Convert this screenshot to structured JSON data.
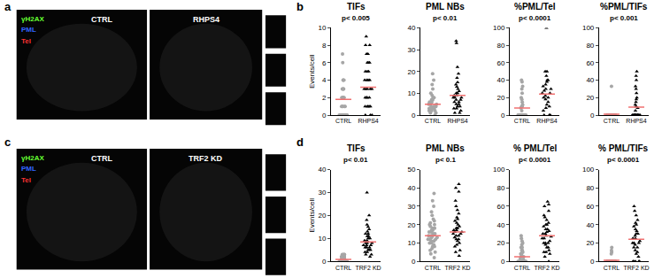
{
  "panel_labels": [
    "a",
    "b",
    "c",
    "d"
  ],
  "images": [
    {
      "labels": [
        "CTRL",
        "RHPS4"
      ],
      "channels": [
        {
          "text": "γH2AX",
          "color": "#66ff33"
        },
        {
          "text": "PML",
          "color": "#3366ff"
        },
        {
          "text": "Tel",
          "color": "#ff3333"
        }
      ]
    },
    {
      "labels": [
        "CTRL",
        "TRF2 KD"
      ],
      "channels": [
        {
          "text": "γH2AX",
          "color": "#66ff33"
        },
        {
          "text": "PML",
          "color": "#3366ff"
        },
        {
          "text": "Tel",
          "color": "#ff3333"
        }
      ]
    }
  ],
  "chart_data": [
    {
      "type": "scatter",
      "title": "TIFs",
      "subtitle": "p< 0.005",
      "y_label": "Events/cell",
      "ylim": [
        0,
        10
      ],
      "yticks": [
        0,
        2,
        4,
        6,
        8,
        10
      ],
      "series": [
        {
          "name": "CTRL",
          "color": "#a6a6a6",
          "marker": "circle",
          "mean": 1.8,
          "values": [
            0,
            0,
            0,
            0,
            0,
            0,
            0,
            0,
            0,
            0,
            0,
            1,
            1,
            1,
            1,
            1,
            2,
            2,
            2,
            2,
            2,
            3,
            3,
            3,
            3,
            4,
            4,
            4,
            6,
            7
          ]
        },
        {
          "name": "RHPS4",
          "color": "#000000",
          "marker": "triangle-up",
          "mean": 3.2,
          "values": [
            0,
            0,
            0,
            1,
            1,
            1,
            1,
            1,
            2,
            2,
            2,
            2,
            3,
            3,
            3,
            3,
            3,
            4,
            4,
            4,
            4,
            5,
            5,
            5,
            6,
            6,
            6,
            7,
            7,
            8,
            8,
            9
          ]
        }
      ]
    },
    {
      "type": "scatter",
      "title": "PML NBs",
      "subtitle": "p< 0.01",
      "ylim": [
        0,
        40
      ],
      "yticks": [
        0,
        10,
        20,
        30,
        40
      ],
      "series": [
        {
          "name": "CTRL",
          "color": "#a6a6a6",
          "marker": "circle",
          "mean": 5,
          "values": [
            0,
            1,
            1,
            2,
            2,
            2,
            3,
            3,
            3,
            3,
            4,
            4,
            4,
            5,
            5,
            5,
            6,
            6,
            7,
            7,
            8,
            8,
            9,
            10,
            12,
            14,
            16,
            19
          ]
        },
        {
          "name": "RHPS4",
          "color": "#000000",
          "marker": "triangle-up",
          "mean": 9,
          "values": [
            1,
            1,
            2,
            3,
            3,
            4,
            4,
            5,
            5,
            6,
            6,
            7,
            7,
            8,
            8,
            8,
            9,
            9,
            10,
            10,
            11,
            12,
            13,
            14,
            15,
            17,
            19,
            22,
            33,
            34
          ]
        }
      ]
    },
    {
      "type": "scatter",
      "title": "%PML/Tel",
      "subtitle": "p< 0.0001",
      "ylim": [
        0,
        100
      ],
      "yticks": [
        0,
        20,
        40,
        60,
        80,
        100
      ],
      "series": [
        {
          "name": "CTRL",
          "color": "#a6a6a6",
          "marker": "circle",
          "mean": 8,
          "values": [
            0,
            0,
            0,
            0,
            0,
            0,
            0,
            0,
            0,
            0,
            0,
            0,
            0,
            0,
            0,
            0,
            5,
            8,
            10,
            10,
            12,
            15,
            18,
            20,
            25,
            30,
            33,
            38,
            40
          ]
        },
        {
          "name": "RHPS4",
          "color": "#000000",
          "marker": "triangle-up",
          "mean": 24,
          "values": [
            0,
            0,
            0,
            5,
            8,
            10,
            12,
            15,
            18,
            20,
            20,
            22,
            25,
            25,
            28,
            30,
            30,
            33,
            35,
            38,
            40,
            40,
            45,
            50,
            50,
            100
          ]
        }
      ]
    },
    {
      "type": "scatter",
      "title": "%PML/TIFs",
      "subtitle": "p< 0.001",
      "ylim": [
        0,
        100
      ],
      "yticks": [
        0,
        20,
        40,
        60,
        80,
        100
      ],
      "series": [
        {
          "name": "CTRL",
          "color": "#a6a6a6",
          "marker": "circle",
          "mean": 1,
          "values": [
            0,
            0,
            0,
            0,
            0,
            0,
            0,
            0,
            0,
            0,
            0,
            0,
            0,
            0,
            0,
            0,
            0,
            0,
            0,
            0,
            0,
            0,
            0,
            0,
            0,
            0,
            0,
            33
          ]
        },
        {
          "name": "RHPS4",
          "color": "#000000",
          "marker": "triangle-up",
          "mean": 9,
          "values": [
            0,
            0,
            0,
            0,
            0,
            0,
            0,
            0,
            0,
            0,
            0,
            0,
            0,
            0,
            5,
            8,
            10,
            12,
            15,
            18,
            20,
            25,
            30,
            33,
            40,
            45,
            50
          ]
        }
      ]
    },
    {
      "type": "scatter",
      "title": "TIFs",
      "subtitle": "p< 0.01",
      "y_label": "Events/cell",
      "ylim": [
        0,
        40
      ],
      "yticks": [
        0,
        10,
        20,
        30,
        40
      ],
      "series": [
        {
          "name": "CTRL",
          "color": "#a6a6a6",
          "marker": "circle",
          "mean": 0.8,
          "values": [
            0,
            0,
            0,
            0,
            0,
            0,
            0,
            0,
            0,
            0,
            0,
            0,
            0,
            0,
            0,
            0,
            0,
            0,
            1,
            1,
            1,
            1,
            1,
            1,
            1,
            1,
            1,
            1,
            2,
            2,
            2,
            2,
            2,
            2,
            2,
            3,
            3,
            3,
            3
          ]
        },
        {
          "name": "TRF2 KD",
          "color": "#000000",
          "marker": "triangle-up",
          "mean": 8.5,
          "values": [
            2,
            3,
            3,
            4,
            4,
            5,
            5,
            5,
            6,
            6,
            6,
            7,
            7,
            7,
            8,
            8,
            8,
            9,
            9,
            10,
            10,
            11,
            11,
            12,
            12,
            13,
            14,
            15,
            16,
            18,
            20,
            30
          ]
        }
      ]
    },
    {
      "type": "scatter",
      "title": "PML NBs",
      "subtitle": "p< 0.1",
      "ylim": [
        0,
        50
      ],
      "yticks": [
        0,
        10,
        20,
        30,
        40,
        50
      ],
      "series": [
        {
          "name": "CTRL",
          "color": "#a6a6a6",
          "marker": "circle",
          "mean": 14,
          "values": [
            2,
            4,
            5,
            6,
            7,
            8,
            8,
            9,
            10,
            10,
            11,
            11,
            12,
            12,
            12,
            13,
            13,
            14,
            14,
            14,
            15,
            15,
            16,
            16,
            17,
            17,
            18,
            18,
            19,
            20,
            20,
            21,
            22,
            23,
            25,
            27,
            30,
            33,
            37
          ]
        },
        {
          "name": "TRF2 KD",
          "color": "#000000",
          "marker": "triangle-up",
          "mean": 16,
          "values": [
            3,
            5,
            6,
            8,
            9,
            10,
            11,
            12,
            12,
            13,
            14,
            14,
            15,
            15,
            16,
            16,
            17,
            17,
            18,
            18,
            19,
            20,
            21,
            22,
            23,
            24,
            26,
            28,
            30,
            33,
            38,
            40,
            42
          ]
        }
      ]
    },
    {
      "type": "scatter",
      "title": "% PML/Tel",
      "subtitle": "p< 0.0001",
      "ylim": [
        0,
        100
      ],
      "yticks": [
        0,
        20,
        40,
        60,
        80,
        100
      ],
      "series": [
        {
          "name": "CTRL",
          "color": "#a6a6a6",
          "marker": "circle",
          "mean": 5,
          "values": [
            0,
            0,
            0,
            0,
            0,
            0,
            0,
            0,
            0,
            0,
            0,
            0,
            2,
            3,
            5,
            5,
            6,
            8,
            8,
            10,
            10,
            12,
            12,
            15,
            15,
            18,
            20,
            22,
            25,
            28
          ]
        },
        {
          "name": "TRF2 KD",
          "color": "#000000",
          "marker": "triangle-up",
          "mean": 28,
          "values": [
            0,
            5,
            8,
            10,
            10,
            12,
            15,
            15,
            18,
            20,
            20,
            20,
            22,
            25,
            25,
            27,
            28,
            30,
            30,
            32,
            33,
            35,
            35,
            38,
            40,
            40,
            42,
            45,
            48,
            50,
            55,
            60,
            62,
            65
          ]
        }
      ]
    },
    {
      "type": "scatter",
      "title": "% PML/TIFs",
      "subtitle": "p< 0.0001",
      "ylim": [
        0,
        100
      ],
      "yticks": [
        0,
        20,
        40,
        60,
        80,
        100
      ],
      "series": [
        {
          "name": "CTRL",
          "color": "#a6a6a6",
          "marker": "circle",
          "mean": 1,
          "values": [
            0,
            0,
            0,
            0,
            0,
            0,
            0,
            0,
            0,
            0,
            0,
            0,
            0,
            0,
            0,
            0,
            0,
            0,
            0,
            0,
            0,
            0,
            0,
            0,
            0,
            0,
            0,
            0,
            0,
            0,
            0,
            0,
            0,
            0,
            0,
            8,
            10,
            12,
            15
          ]
        },
        {
          "name": "TRF2 KD",
          "color": "#000000",
          "marker": "triangle-up",
          "mean": 24,
          "values": [
            0,
            0,
            0,
            0,
            0,
            5,
            8,
            10,
            12,
            15,
            15,
            18,
            20,
            20,
            20,
            22,
            25,
            25,
            28,
            30,
            30,
            33,
            35,
            38,
            40,
            42,
            45,
            50,
            55,
            60
          ]
        }
      ]
    }
  ]
}
